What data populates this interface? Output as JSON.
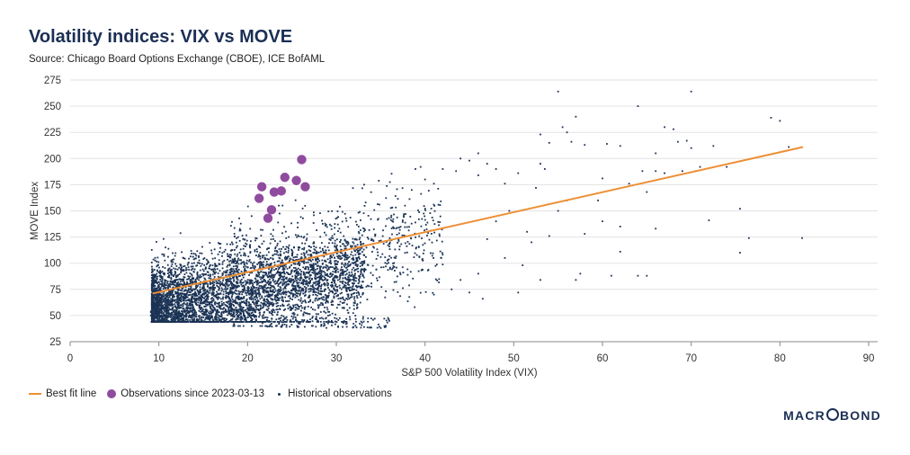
{
  "header": {
    "title": "Volatility indices: VIX vs MOVE",
    "subtitle": "Source: Chicago Board Options Exchange (CBOE), ICE BofAML"
  },
  "legend": {
    "fit_label": "Best fit line",
    "recent_label": "Observations since 2023-03-13",
    "historical_label": "Historical observations"
  },
  "brand": {
    "left": "MACR",
    "right": "BOND"
  },
  "colors": {
    "navy": "#1b3355",
    "orange": "#ee8f35",
    "purple": "#8f4b9e",
    "grid": "#e3e3e3"
  },
  "chart_data": {
    "type": "scatter",
    "title": "Volatility indices: VIX vs MOVE",
    "xlabel": "S&P 500 Volatility Index (VIX)",
    "ylabel": "MOVE Index",
    "xlim": [
      0,
      90
    ],
    "ylim": [
      25,
      275
    ],
    "xticks": [
      0,
      10,
      20,
      30,
      40,
      50,
      60,
      70,
      80,
      90
    ],
    "yticks": [
      25,
      50,
      75,
      100,
      125,
      150,
      175,
      200,
      225,
      250,
      275
    ],
    "grid": "horizontal",
    "best_fit": {
      "name": "Best fit line",
      "x": [
        9.3,
        82.6
      ],
      "y": [
        71,
        211
      ]
    },
    "recent_observations": {
      "name": "Observations since 2023-03-13",
      "points": [
        [
          21.3,
          162
        ],
        [
          21.6,
          173
        ],
        [
          22.3,
          143
        ],
        [
          22.7,
          151
        ],
        [
          23.0,
          168
        ],
        [
          23.8,
          169
        ],
        [
          24.2,
          182
        ],
        [
          25.5,
          179
        ],
        [
          26.1,
          199
        ],
        [
          26.5,
          173
        ]
      ]
    },
    "historical_observations": {
      "name": "Historical observations",
      "cluster": {
        "vix_range": [
          9,
          40
        ],
        "move_range": [
          40,
          190
        ]
      },
      "outliers": [
        [
          55.0,
          264
        ],
        [
          70.0,
          264
        ],
        [
          64.0,
          250
        ],
        [
          57.0,
          240
        ],
        [
          79.0,
          239
        ],
        [
          80.0,
          236
        ],
        [
          55.5,
          230
        ],
        [
          56.0,
          225
        ],
        [
          67.0,
          230
        ],
        [
          68.0,
          228
        ],
        [
          53.0,
          223
        ],
        [
          54.0,
          215
        ],
        [
          58.0,
          213
        ],
        [
          60.5,
          214
        ],
        [
          62.0,
          212
        ],
        [
          69.5,
          217
        ],
        [
          70.0,
          210
        ],
        [
          72.5,
          212
        ],
        [
          56.5,
          216
        ],
        [
          64.5,
          188
        ],
        [
          66.0,
          188
        ],
        [
          67.0,
          186
        ],
        [
          69.0,
          188
        ],
        [
          70.5,
          188
        ],
        [
          71.0,
          192
        ],
        [
          66.0,
          205
        ],
        [
          68.5,
          216
        ],
        [
          74.0,
          192
        ],
        [
          81.0,
          211
        ],
        [
          53.0,
          195
        ],
        [
          53.5,
          190
        ],
        [
          60.0,
          181
        ],
        [
          63.0,
          176
        ],
        [
          65.0,
          168
        ],
        [
          72.0,
          141
        ],
        [
          75.5,
          152
        ],
        [
          76.5,
          124
        ],
        [
          82.5,
          124
        ],
        [
          75.5,
          110
        ],
        [
          62.0,
          111
        ],
        [
          57.5,
          90
        ],
        [
          57.0,
          84
        ],
        [
          61.0,
          88
        ],
        [
          64.0,
          88
        ],
        [
          65.0,
          88
        ],
        [
          53.0,
          84
        ],
        [
          50.5,
          72
        ],
        [
          45.0,
          72
        ],
        [
          46.5,
          66
        ],
        [
          52.0,
          120
        ],
        [
          58.0,
          128
        ],
        [
          60.0,
          140
        ],
        [
          62.0,
          135
        ],
        [
          66.0,
          133
        ],
        [
          48.0,
          140
        ],
        [
          49.5,
          150
        ],
        [
          55.0,
          150
        ],
        [
          56.0,
          160
        ],
        [
          59.5,
          160
        ],
        [
          51.5,
          130
        ],
        [
          54.0,
          126
        ],
        [
          47.0,
          123
        ],
        [
          49.0,
          105
        ],
        [
          51.0,
          98
        ],
        [
          46.0,
          90
        ],
        [
          44.0,
          84
        ],
        [
          43.0,
          75
        ],
        [
          41.0,
          70
        ],
        [
          44.0,
          200
        ],
        [
          45.0,
          198
        ],
        [
          46.0,
          205
        ],
        [
          47.0,
          195
        ],
        [
          48.0,
          190
        ],
        [
          42.0,
          190
        ],
        [
          43.5,
          188
        ],
        [
          39.5,
          192
        ],
        [
          40.0,
          180
        ],
        [
          41.0,
          176
        ],
        [
          38.5,
          170
        ],
        [
          46.0,
          184
        ],
        [
          50.5,
          186
        ],
        [
          52.5,
          172
        ],
        [
          49.0,
          176
        ]
      ]
    }
  }
}
